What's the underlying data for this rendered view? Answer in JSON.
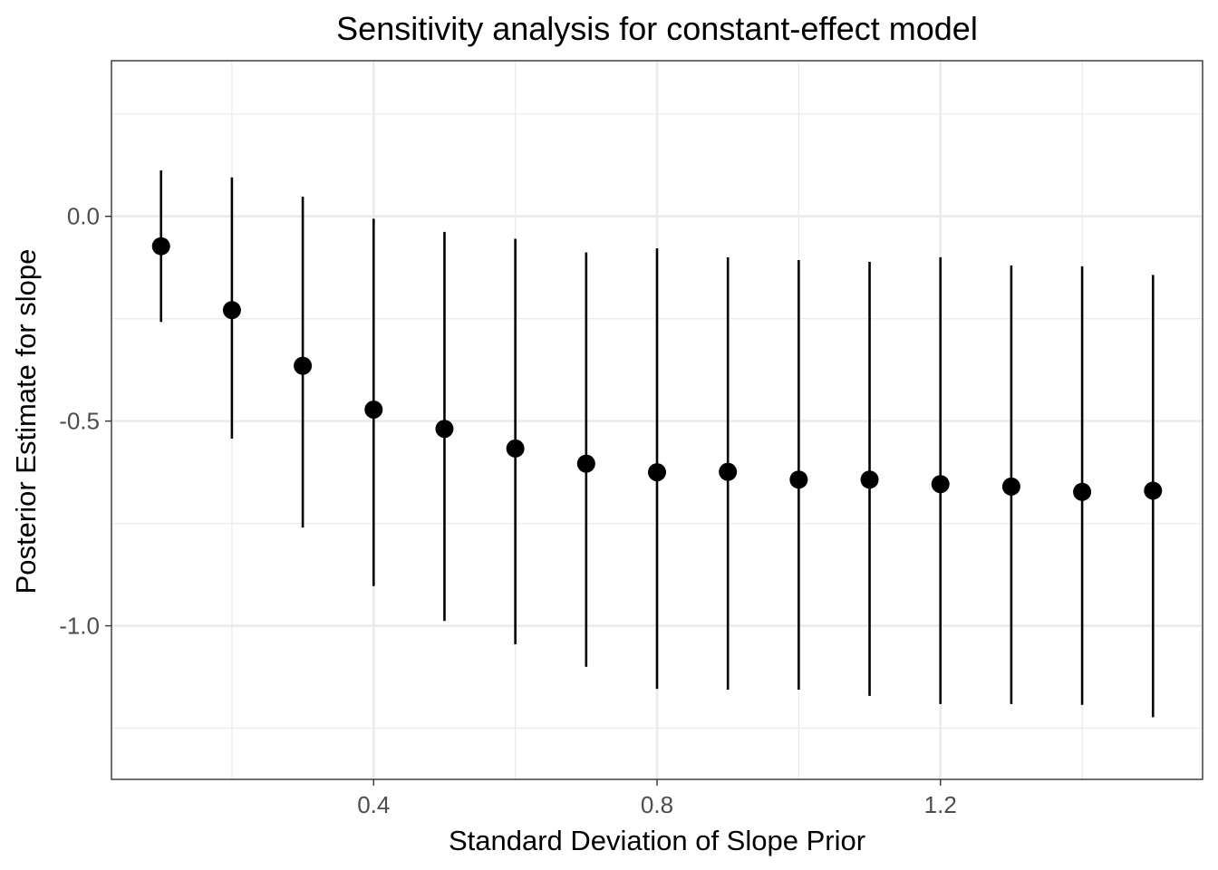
{
  "chart_data": {
    "type": "scatter",
    "title": "Sensitivity analysis for constant-effect model",
    "xlabel": "Standard Deviation of Slope Prior",
    "ylabel": "Posterior Estimate for slope",
    "xlim": [
      0.03,
      1.57
    ],
    "ylim": [
      -1.375,
      0.38
    ],
    "x_ticks": [
      0.4,
      0.8,
      1.2
    ],
    "x_tick_labels": [
      "0.4",
      "0.8",
      "1.2"
    ],
    "x_minor_ticks": [
      0.2,
      0.6,
      1.0,
      1.4
    ],
    "y_ticks": [
      0.0,
      -0.5,
      -1.0
    ],
    "y_tick_labels": [
      "0.0",
      "-0.5",
      "-1.0"
    ],
    "y_minor_ticks": [
      0.25,
      -0.25,
      -0.75,
      -1.25
    ],
    "grid": true,
    "legend": "none",
    "point_color": "#000000",
    "series": [
      {
        "x": [
          0.1,
          0.2,
          0.3,
          0.4,
          0.5,
          0.6,
          0.7,
          0.8,
          0.9,
          1.0,
          1.1,
          1.2,
          1.3,
          1.4,
          1.5
        ],
        "y": [
          -0.073,
          -0.229,
          -0.365,
          -0.472,
          -0.519,
          -0.567,
          -0.604,
          -0.625,
          -0.624,
          -0.643,
          -0.643,
          -0.654,
          -0.66,
          -0.673,
          -0.67
        ],
        "lower": [
          -0.258,
          -0.543,
          -0.76,
          -0.903,
          -0.988,
          -1.045,
          -1.1,
          -1.154,
          -1.156,
          -1.156,
          -1.171,
          -1.191,
          -1.191,
          -1.193,
          -1.223
        ],
        "upper": [
          0.112,
          0.095,
          0.048,
          -0.006,
          -0.038,
          -0.055,
          -0.088,
          -0.078,
          -0.1,
          -0.107,
          -0.111,
          -0.1,
          -0.12,
          -0.122,
          -0.143
        ]
      }
    ]
  }
}
